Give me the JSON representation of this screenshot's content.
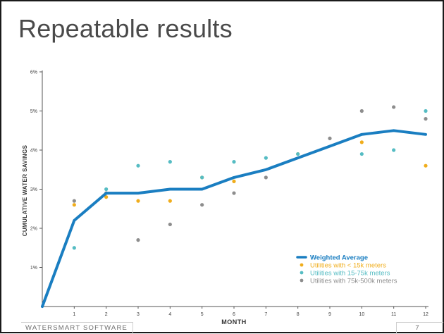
{
  "slide": {
    "title": "Repeatable results",
    "footer_left": "WATERSMART SOFTWARE",
    "page_number": "7"
  },
  "colors": {
    "weighted_average": "#1a7ec1",
    "under_15k": "#f0ad1c",
    "15_75k": "#55bcc3",
    "75_500k": "#8d8d8d",
    "axis": "#555555"
  },
  "chart_data": {
    "type": "scatter",
    "xlabel": "MONTH",
    "ylabel": "CUMULATIVE WATER SAVINGS",
    "xlim": [
      0,
      12
    ],
    "ylim": [
      0,
      6
    ],
    "x_ticks": [
      "1",
      "2",
      "3",
      "4",
      "5",
      "6",
      "7",
      "8",
      "9",
      "10",
      "11",
      "12"
    ],
    "y_ticks": [
      {
        "value": 1,
        "label": "1%"
      },
      {
        "value": 2,
        "label": "2%"
      },
      {
        "value": 3,
        "label": "3%"
      },
      {
        "value": 4,
        "label": "4%"
      },
      {
        "value": 5,
        "label": "5%"
      },
      {
        "value": 6,
        "label": "6%"
      }
    ],
    "legend_position": "bottom-right",
    "series": [
      {
        "name": "Weighted Average",
        "type": "line",
        "color_key": "weighted_average",
        "points": [
          [
            0,
            0
          ],
          [
            1,
            2.2
          ],
          [
            2,
            2.9
          ],
          [
            3,
            2.9
          ],
          [
            4,
            3.0
          ],
          [
            5,
            3.0
          ],
          [
            6,
            3.3
          ],
          [
            7,
            3.5
          ],
          [
            8,
            3.8
          ],
          [
            9,
            4.1
          ],
          [
            10,
            4.4
          ],
          [
            11,
            4.5
          ],
          [
            12,
            4.4
          ]
        ]
      },
      {
        "name": "Utilities with < 15k meters",
        "type": "scatter",
        "color_key": "under_15k",
        "points": [
          [
            1,
            2.6
          ],
          [
            2,
            2.8
          ],
          [
            3,
            2.7
          ],
          [
            4,
            2.7
          ],
          [
            5,
            3.3
          ],
          [
            6,
            3.2
          ],
          [
            8,
            3.9
          ],
          [
            10,
            4.2
          ],
          [
            12,
            3.6
          ]
        ]
      },
      {
        "name": "Utilities with 15-75k meters",
        "type": "scatter",
        "color_key": "15_75k",
        "points": [
          [
            1,
            1.5
          ],
          [
            2,
            3.0
          ],
          [
            3,
            3.6
          ],
          [
            4,
            3.7
          ],
          [
            5,
            3.3
          ],
          [
            6,
            3.7
          ],
          [
            7,
            3.8
          ],
          [
            8,
            3.9
          ],
          [
            10,
            3.9
          ],
          [
            11,
            4.0
          ],
          [
            12,
            5.0
          ]
        ]
      },
      {
        "name": "Utilities with 75k-500k meters",
        "type": "scatter",
        "color_key": "75_500k",
        "points": [
          [
            1,
            2.7
          ],
          [
            2,
            2.9
          ],
          [
            3,
            1.7
          ],
          [
            4,
            2.1
          ],
          [
            5,
            2.6
          ],
          [
            6,
            2.9
          ],
          [
            7,
            3.3
          ],
          [
            9,
            4.3
          ],
          [
            10,
            5.0
          ],
          [
            11,
            5.1
          ],
          [
            12,
            4.8
          ]
        ]
      }
    ]
  }
}
